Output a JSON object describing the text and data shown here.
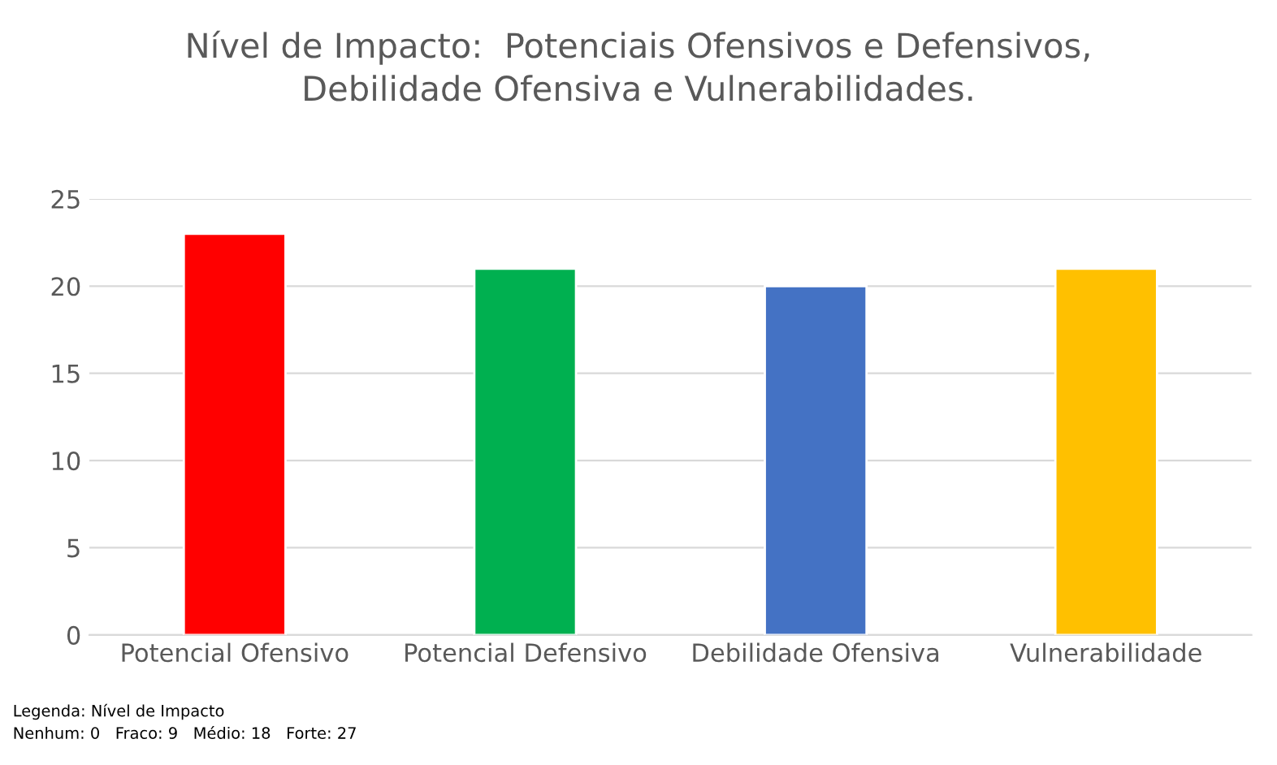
{
  "chart_data": {
    "type": "bar",
    "title": "Nível de Impacto:  Potenciais Ofensivos e Defensivos,\nDebilidade Ofensiva e Vulnerabilidades.",
    "categories": [
      "Potencial Ofensivo",
      "Potencial Defensivo",
      "Debilidade Ofensiva",
      "Vulnerabilidade"
    ],
    "values": [
      23,
      21,
      20,
      21
    ],
    "colors": [
      "#ff0000",
      "#00b050",
      "#4472c4",
      "#ffc000"
    ],
    "ylim": [
      0,
      25
    ],
    "yticks": [
      0,
      5,
      10,
      15,
      20,
      25
    ],
    "grid": "y",
    "legend": false,
    "annotations": [
      "Legenda: Nível de Impacto",
      "Nenhum: 0   Fraco: 9   Médio: 18   Forte: 27"
    ]
  }
}
